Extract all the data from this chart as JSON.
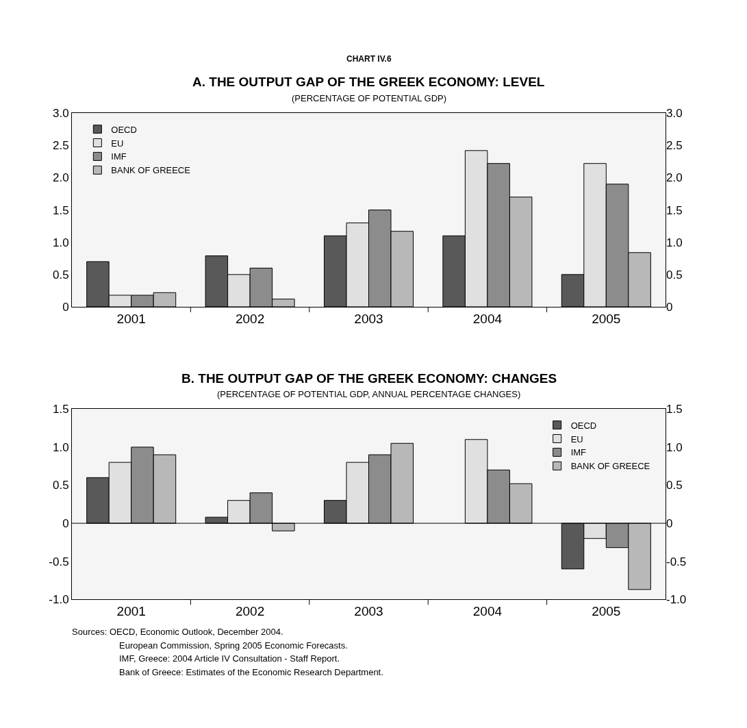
{
  "chart_data": [
    {
      "type": "bar",
      "title": "A. THE OUTPUT GAP OF THE GREEK ECONOMY: LEVEL",
      "subtitle": "(PERCENTAGE OF POTENTIAL GDP)",
      "annotations": [
        "CHART IV.6"
      ],
      "categories": [
        "2001",
        "2002",
        "2003",
        "2004",
        "2005"
      ],
      "series": [
        {
          "name": "OECD",
          "color": "#595959",
          "values": [
            0.7,
            0.79,
            1.1,
            1.1,
            0.5
          ]
        },
        {
          "name": "EU",
          "color": "#e0e0e0",
          "values": [
            0.18,
            0.5,
            1.3,
            2.42,
            2.22
          ]
        },
        {
          "name": "IMF",
          "color": "#8c8c8c",
          "values": [
            0.18,
            0.6,
            1.5,
            2.22,
            1.9
          ]
        },
        {
          "name": "BANK OF GREECE",
          "color": "#b8b8b8",
          "values": [
            0.22,
            0.12,
            1.17,
            1.7,
            0.84
          ]
        }
      ],
      "ylim": [
        0,
        3
      ],
      "yticks": [
        0,
        {
          "value": 0.5,
          "label": "0.5"
        },
        {
          "value": 1,
          "label": "1.0"
        },
        {
          "value": 1.5,
          "label": "1.5"
        },
        {
          "value": 2,
          "label": "2.0"
        },
        {
          "value": 2.5,
          "label": "2.5"
        },
        {
          "value": 3,
          "label": "3.0"
        }
      ],
      "y2lim": [
        0,
        3
      ],
      "y2ticks": [
        0,
        {
          "value": 0.5,
          "label": "0.5"
        },
        {
          "value": 1,
          "label": "1.0"
        },
        {
          "value": 1.5,
          "label": "1.5"
        },
        {
          "value": 2,
          "label": "2.0"
        },
        {
          "value": 2.5,
          "label": "2.5"
        },
        {
          "value": 3,
          "label": "3.0"
        }
      ],
      "grid": false,
      "legend": "top left"
    },
    {
      "type": "bar",
      "title": "B. THE OUTPUT GAP OF THE GREEK ECONOMY: CHANGES",
      "subtitle": "(PERCENTAGE OF POTENTIAL GDP, ANNUAL PERCENTAGE CHANGES)",
      "annotations": [
        "Sources: OECD, Economic Outlook, December 2004.",
        "European Commission, Spring 2005 Economic Forecasts.",
        "IMF, Greece: 2004 Article IV Consultation - Staff Report.",
        "Bank of Greece: Estimates of the Economic Research Department."
      ],
      "categories": [
        "2001",
        "2002",
        "2003",
        "2004",
        "2005"
      ],
      "series": [
        {
          "name": "OECD",
          "color": "#595959",
          "values": [
            0.6,
            0.08,
            0.3,
            null,
            -0.6
          ]
        },
        {
          "name": "EU",
          "color": "#e0e0e0",
          "values": [
            0.8,
            0.3,
            0.8,
            1.1,
            -0.2
          ]
        },
        {
          "name": "IMF",
          "color": "#8c8c8c",
          "values": [
            1.0,
            0.4,
            0.9,
            0.7,
            -0.32
          ]
        },
        {
          "name": "BANK OF GREECE",
          "color": "#b8b8b8",
          "values": [
            0.9,
            -0.1,
            1.05,
            0.52,
            -0.87
          ]
        }
      ],
      "ylim": [
        -1,
        1.5
      ],
      "yticks": [
        {
          "value": -1,
          "label": "-1.0"
        },
        {
          "value": -0.5,
          "label": "-0.5"
        },
        0,
        {
          "value": 0.5,
          "label": "0.5"
        },
        {
          "value": 1,
          "label": "1.0"
        },
        {
          "value": 1.5,
          "label": "1.5"
        }
      ],
      "y2lim": [
        -1,
        1.5
      ],
      "y2ticks": [
        {
          "value": -1,
          "label": "-1.0"
        },
        {
          "value": -0.5,
          "label": "-0.5"
        },
        0,
        {
          "value": 0.5,
          "label": "0.5"
        },
        {
          "value": 1,
          "label": "1.0"
        },
        {
          "value": 1.5,
          "label": "1.5"
        }
      ],
      "ref_lines": [
        {
          "axis": "y",
          "value": 0,
          "color": "#000000"
        }
      ],
      "grid": false,
      "legend": "top right"
    }
  ]
}
